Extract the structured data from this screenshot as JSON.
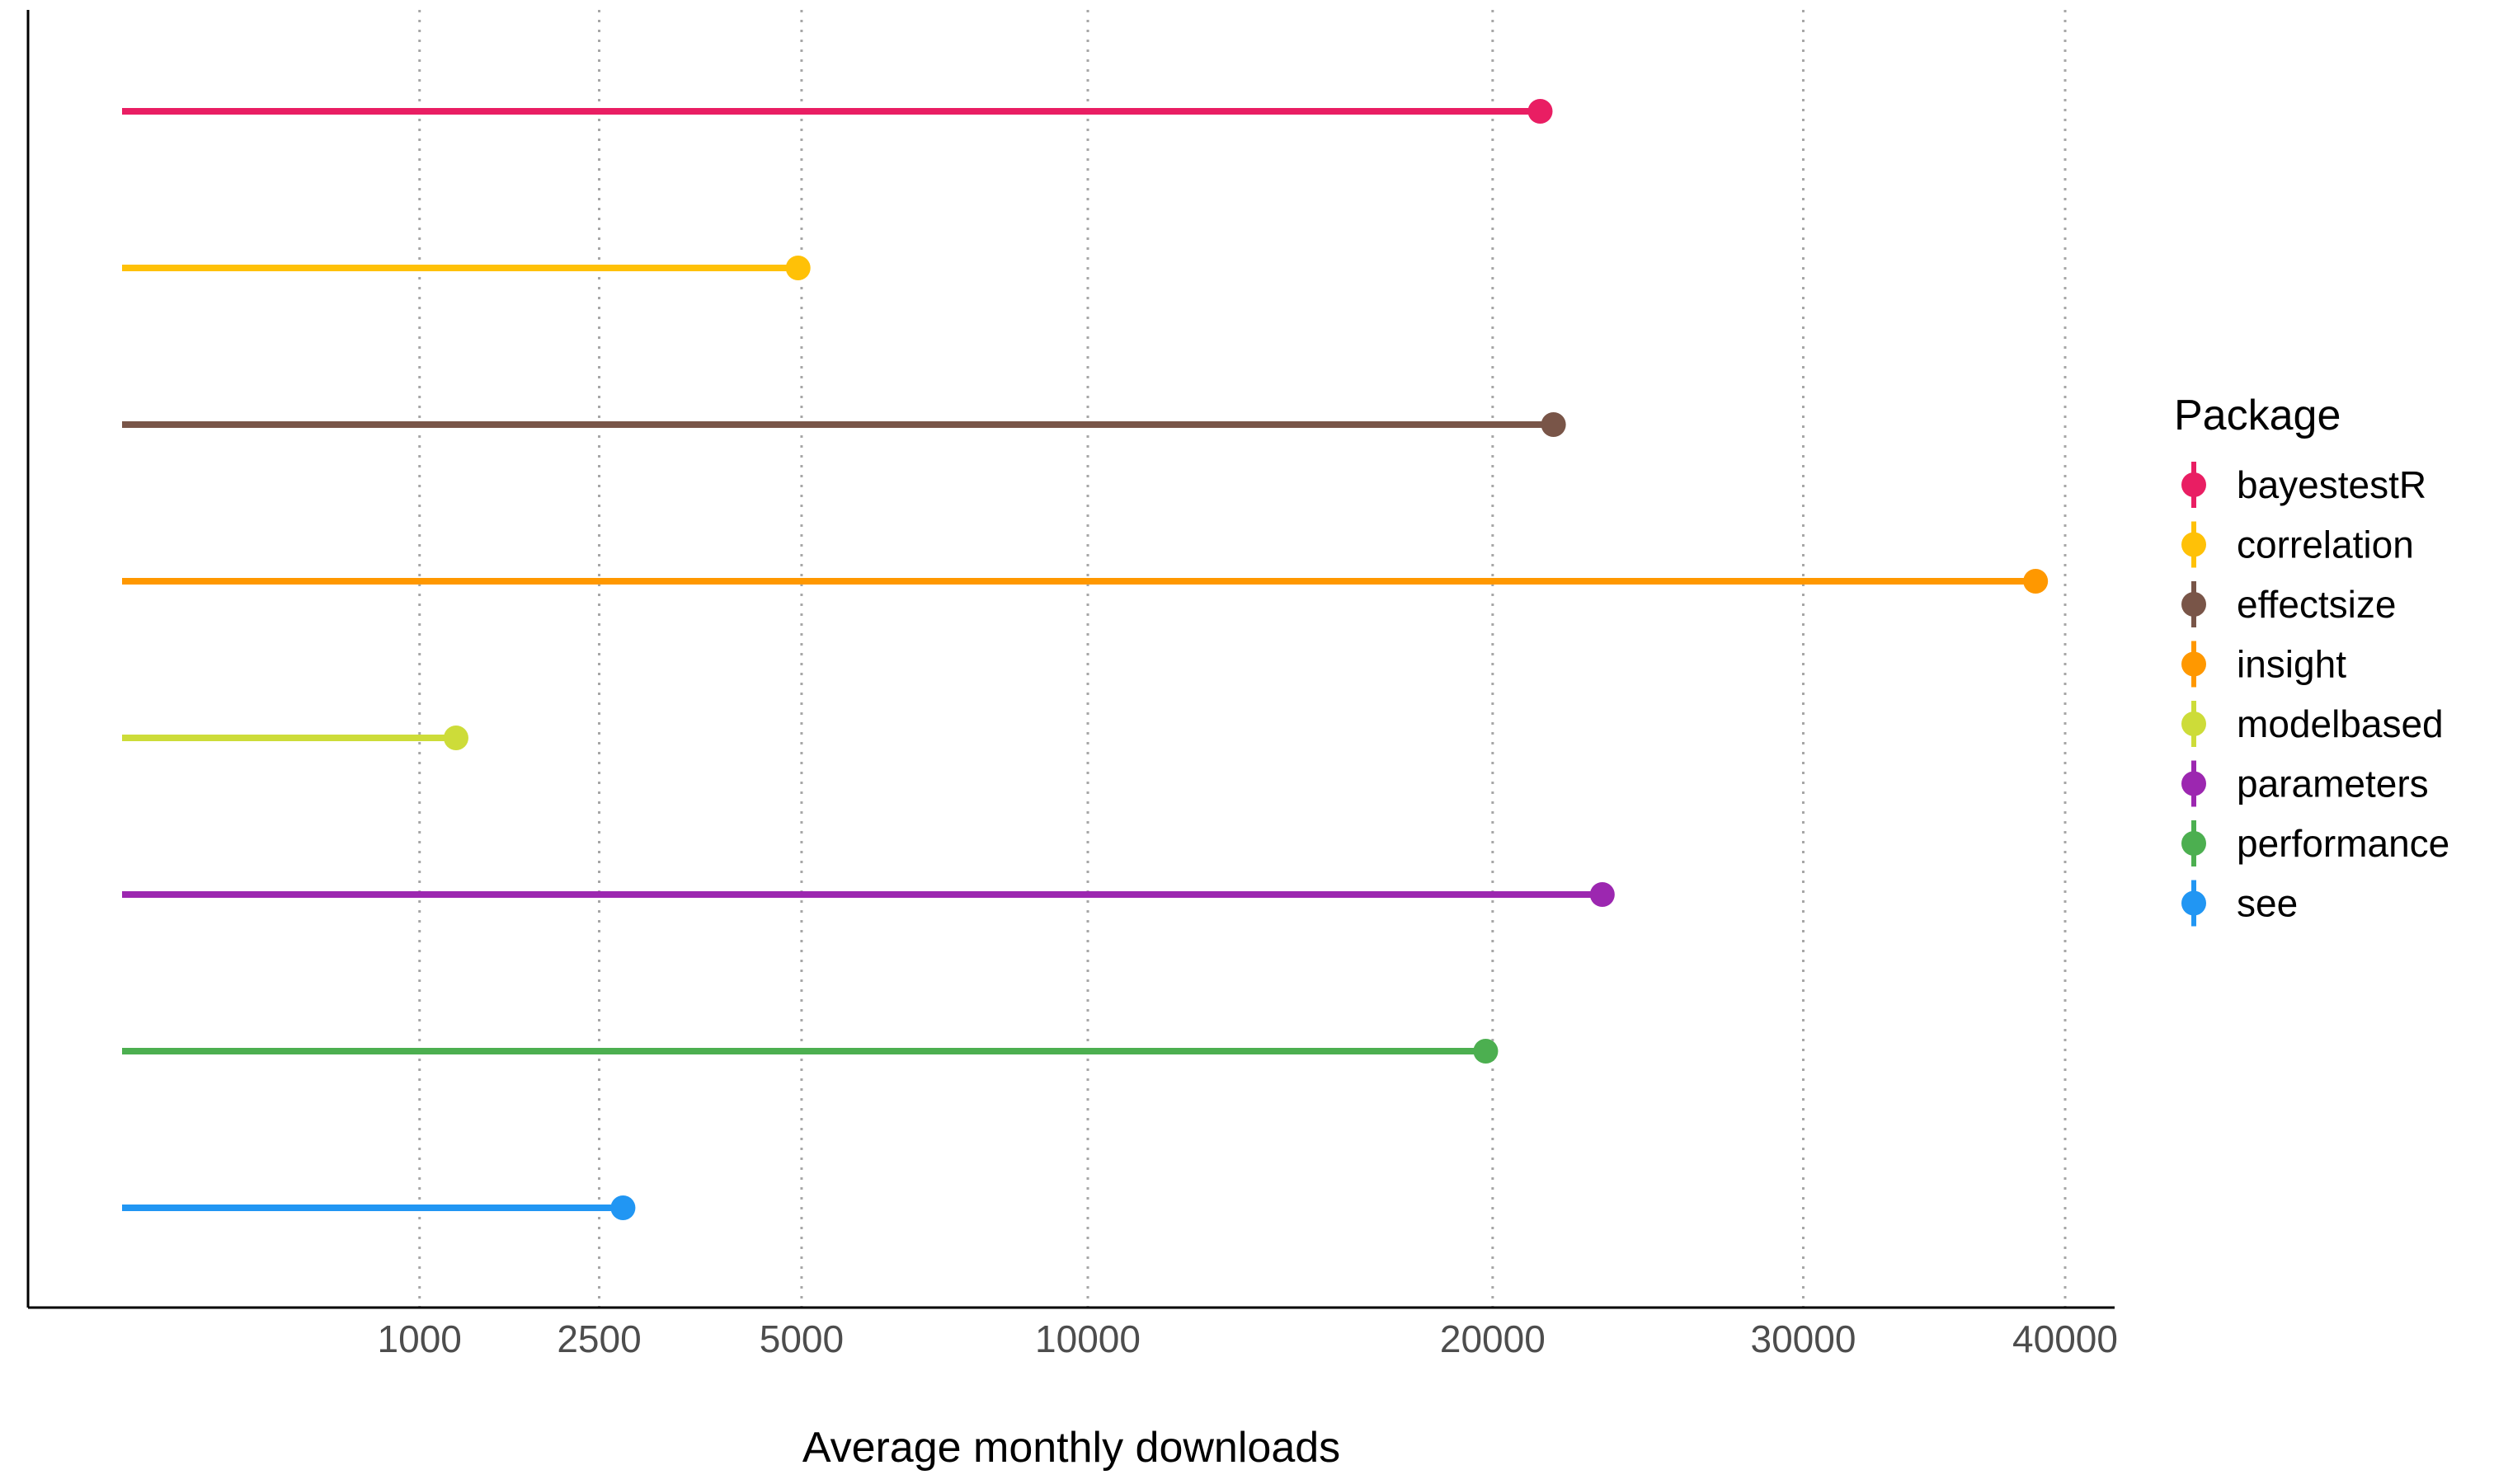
{
  "chart_data": {
    "type": "lollipop",
    "xlabel": "Average monthly downloads",
    "x_ticks": [
      1000,
      2500,
      5000,
      10000,
      20000,
      30000,
      40000
    ],
    "x_scale": "sqrt",
    "xlim": [
      0,
      41500
    ],
    "grid": "vertical dotted",
    "legend": {
      "title": "Package",
      "position": "right"
    },
    "series": [
      {
        "name": "bayestestR",
        "value": 21400,
        "color": "#e91e63"
      },
      {
        "name": "correlation",
        "value": 4950,
        "color": "#ffc107"
      },
      {
        "name": "effectsize",
        "value": 21800,
        "color": "#795548"
      },
      {
        "name": "insight",
        "value": 38800,
        "color": "#ff9800"
      },
      {
        "name": "modelbased",
        "value": 1250,
        "color": "#cddc39"
      },
      {
        "name": "parameters",
        "value": 23300,
        "color": "#9c27b0"
      },
      {
        "name": "performance",
        "value": 19800,
        "color": "#4caf50"
      },
      {
        "name": "see",
        "value": 2750,
        "color": "#2196f3"
      }
    ]
  }
}
